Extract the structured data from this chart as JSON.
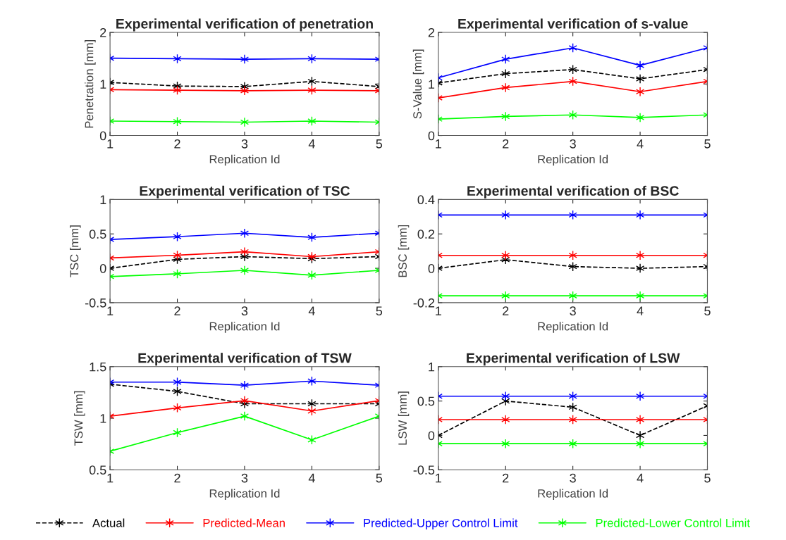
{
  "chart_data": [
    {
      "type": "line",
      "title": "Experimental verification of penetration",
      "xlabel": "Replication Id",
      "ylabel": "Penetration [mm]",
      "x": [
        1,
        2,
        3,
        4,
        5
      ],
      "xlim": [
        1,
        5
      ],
      "xticks": [
        1,
        2,
        3,
        4,
        5
      ],
      "ylim": [
        0,
        2
      ],
      "yticks": [
        0,
        1,
        2
      ],
      "marker": "cross",
      "legend": "bottom",
      "grid": false,
      "series": [
        {
          "name": "Actual",
          "color": "#000000",
          "line_style": "dashed",
          "values": [
            1.03,
            0.96,
            0.95,
            1.05,
            0.95
          ]
        },
        {
          "name": "Predicted-Mean",
          "color": "#ff0000",
          "line_style": "solid",
          "values": [
            0.89,
            0.88,
            0.87,
            0.88,
            0.87
          ]
        },
        {
          "name": "Predicted-Upper Control Limit",
          "color": "#0000ff",
          "line_style": "solid",
          "values": [
            1.5,
            1.49,
            1.48,
            1.49,
            1.48
          ]
        },
        {
          "name": "Predicted-Lower Control Limit",
          "color": "#00ff00",
          "line_style": "solid",
          "values": [
            0.28,
            0.27,
            0.26,
            0.28,
            0.26
          ]
        }
      ]
    },
    {
      "type": "line",
      "title": "Experimental verification of s-value",
      "xlabel": "Replication Id",
      "ylabel": "S-Value [mm]",
      "x": [
        1,
        2,
        3,
        4,
        5
      ],
      "xlim": [
        1,
        5
      ],
      "xticks": [
        1,
        2,
        3,
        4,
        5
      ],
      "ylim": [
        0,
        2
      ],
      "yticks": [
        0,
        1,
        2
      ],
      "marker": "cross",
      "grid": false,
      "series": [
        {
          "color": "#000000",
          "line_style": "dashed",
          "values": [
            1.02,
            1.2,
            1.28,
            1.1,
            1.28
          ]
        },
        {
          "color": "#ff0000",
          "line_style": "solid",
          "values": [
            0.73,
            0.93,
            1.05,
            0.85,
            1.05
          ]
        },
        {
          "color": "#0000ff",
          "line_style": "solid",
          "values": [
            1.12,
            1.48,
            1.7,
            1.36,
            1.7
          ]
        },
        {
          "color": "#00ff00",
          "line_style": "solid",
          "values": [
            0.32,
            0.37,
            0.4,
            0.35,
            0.4
          ]
        }
      ]
    },
    {
      "type": "line",
      "title": "Experimental verification of TSC",
      "xlabel": "Replication Id",
      "ylabel": "TSC [mm]",
      "x": [
        1,
        2,
        3,
        4,
        5
      ],
      "xlim": [
        1,
        5
      ],
      "xticks": [
        1,
        2,
        3,
        4,
        5
      ],
      "ylim": [
        -0.5,
        1
      ],
      "yticks": [
        -0.5,
        0,
        0.5,
        1
      ],
      "marker": "cross",
      "grid": false,
      "series": [
        {
          "color": "#000000",
          "line_style": "dashed",
          "values": [
            0,
            0.13,
            0.17,
            0.14,
            0.17
          ]
        },
        {
          "color": "#ff0000",
          "line_style": "solid",
          "values": [
            0.15,
            0.19,
            0.24,
            0.17,
            0.24
          ]
        },
        {
          "color": "#0000ff",
          "line_style": "solid",
          "values": [
            0.42,
            0.46,
            0.51,
            0.45,
            0.51
          ]
        },
        {
          "color": "#00ff00",
          "line_style": "solid",
          "values": [
            -0.12,
            -0.08,
            -0.03,
            -0.1,
            -0.03
          ]
        }
      ]
    },
    {
      "type": "line",
      "title": "Experimental verification of BSC",
      "xlabel": "Replication Id",
      "ylabel": "BSC [mm]",
      "x": [
        1,
        2,
        3,
        4,
        5
      ],
      "xlim": [
        1,
        5
      ],
      "xticks": [
        1,
        2,
        3,
        4,
        5
      ],
      "ylim": [
        -0.2,
        0.4
      ],
      "yticks": [
        -0.2,
        0,
        0.2,
        0.4
      ],
      "marker": "cross",
      "grid": false,
      "series": [
        {
          "color": "#000000",
          "line_style": "dashed",
          "values": [
            0,
            0.05,
            0.01,
            0,
            0.01
          ]
        },
        {
          "color": "#ff0000",
          "line_style": "solid",
          "values": [
            0.075,
            0.075,
            0.075,
            0.075,
            0.075
          ]
        },
        {
          "color": "#0000ff",
          "line_style": "solid",
          "values": [
            0.31,
            0.31,
            0.31,
            0.31,
            0.31
          ]
        },
        {
          "color": "#00ff00",
          "line_style": "solid",
          "values": [
            -0.16,
            -0.16,
            -0.16,
            -0.16,
            -0.16
          ]
        }
      ]
    },
    {
      "type": "line",
      "title": "Experimental verification of TSW",
      "xlabel": "Replication Id",
      "ylabel": "TSW [mm]",
      "x": [
        1,
        2,
        3,
        4,
        5
      ],
      "xlim": [
        1,
        5
      ],
      "xticks": [
        1,
        2,
        3,
        4,
        5
      ],
      "ylim": [
        0.5,
        1.5
      ],
      "yticks": [
        0.5,
        1,
        1.5
      ],
      "marker": "cross",
      "grid": false,
      "series": [
        {
          "color": "#000000",
          "line_style": "dashed",
          "values": [
            1.33,
            1.26,
            1.14,
            1.14,
            1.14
          ]
        },
        {
          "color": "#ff0000",
          "line_style": "solid",
          "values": [
            1.02,
            1.1,
            1.17,
            1.07,
            1.17
          ]
        },
        {
          "color": "#0000ff",
          "line_style": "solid",
          "values": [
            1.35,
            1.35,
            1.32,
            1.36,
            1.32
          ]
        },
        {
          "color": "#00ff00",
          "line_style": "solid",
          "values": [
            0.68,
            0.86,
            1.02,
            0.79,
            1.02
          ]
        }
      ]
    },
    {
      "type": "line",
      "title": "Experimental verification of LSW",
      "xlabel": "Replication Id",
      "ylabel": "LSW [mm]",
      "x": [
        1,
        2,
        3,
        4,
        5
      ],
      "xlim": [
        1,
        5
      ],
      "xticks": [
        1,
        2,
        3,
        4,
        5
      ],
      "ylim": [
        -0.5,
        1
      ],
      "yticks": [
        -0.5,
        0,
        0.5,
        1
      ],
      "marker": "cross",
      "grid": false,
      "series": [
        {
          "color": "#000000",
          "line_style": "dashed",
          "values": [
            0,
            0.5,
            0.41,
            0,
            0.43
          ]
        },
        {
          "color": "#ff0000",
          "line_style": "solid",
          "values": [
            0.23,
            0.23,
            0.23,
            0.23,
            0.23
          ]
        },
        {
          "color": "#0000ff",
          "line_style": "solid",
          "values": [
            0.57,
            0.57,
            0.57,
            0.57,
            0.57
          ]
        },
        {
          "color": "#00ff00",
          "line_style": "solid",
          "values": [
            -0.12,
            -0.12,
            -0.12,
            -0.12,
            -0.12
          ]
        }
      ]
    }
  ]
}
